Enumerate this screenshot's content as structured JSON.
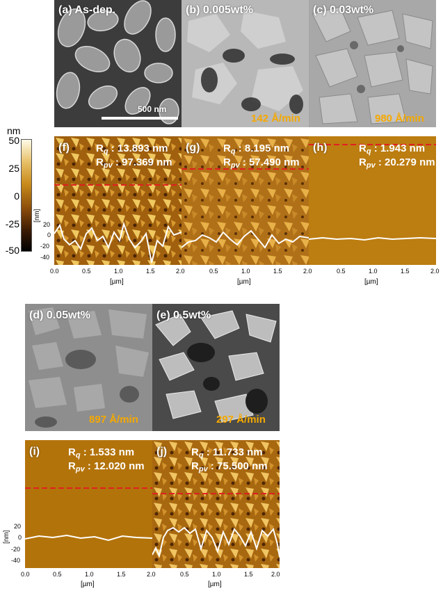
{
  "sem_panels": {
    "a": {
      "label": "(a) As-dep.",
      "scale_bar": "500 nm"
    },
    "b": {
      "label": "(b) 0.005wt%",
      "rate": "142 Å/min"
    },
    "c": {
      "label": "(c) 0.03wt%",
      "rate": "980 Å/min"
    },
    "d": {
      "label": "(d) 0.05wt%",
      "rate": "897 Å/min"
    },
    "e": {
      "label": "(e) 0.5wt%",
      "rate": "297 Å/min"
    }
  },
  "afm_panels": {
    "f": {
      "label": "(f)",
      "rq_label": "R",
      "rq_sub": "q",
      "rq_value": " : 13.893 nm",
      "rpv_label": "R",
      "rpv_sub": "pv",
      "rpv_value": " : 97.369 nm"
    },
    "g": {
      "label": "(g)",
      "rq_label": "R",
      "rq_sub": "q",
      "rq_value": " : 8.195 nm",
      "rpv_label": "R",
      "rpv_sub": "pv",
      "rpv_value": " : 57.490 nm"
    },
    "h": {
      "label": "(h)",
      "rq_label": "R",
      "rq_sub": "q",
      "rq_value": " : 1.943 nm",
      "rpv_label": "R",
      "rpv_sub": "pv",
      "rpv_value": " : 20.279 nm"
    },
    "i": {
      "label": "(i)",
      "rq_label": "R",
      "rq_sub": "q",
      "rq_value": " : 1.533 nm",
      "rpv_label": "R",
      "rpv_sub": "pv",
      "rpv_value": " : 12.020 nm"
    },
    "j": {
      "label": "(j)",
      "rq_label": "R",
      "rq_sub": "q",
      "rq_value": " : 11.733 nm",
      "rpv_label": "R",
      "rpv_sub": "pv",
      "rpv_value": " : 75.500 nm"
    }
  },
  "colorbar": {
    "unit": "nm",
    "ticks": [
      "50",
      "25",
      "0",
      "-25",
      "-50"
    ],
    "colors": [
      "#fffbe8",
      "#e8c068",
      "#c88a1a",
      "#8a4c0a",
      "#3a1a04",
      "#000000"
    ]
  },
  "profile_axes": {
    "y_unit": "[nm]",
    "x_unit": "[µm]",
    "y_ticks": [
      "20",
      "0",
      "-20",
      "-40"
    ],
    "x_ticks_row1": [
      "0.0",
      "0.5",
      "1.0",
      "1.5",
      "2.0",
      "0.5",
      "1.0",
      "1.5",
      "2.0",
      "0.5",
      "1.0",
      "1.5",
      "2.0"
    ],
    "x_ticks_row2": [
      "0.0",
      "0.5",
      "1.0",
      "1.5",
      "2.0",
      "0.5",
      "1.0",
      "1.5",
      "2.0"
    ]
  },
  "colors": {
    "rate_text": "#f5a800",
    "scan_line": "#e02020",
    "profile_line": "#ffffff"
  }
}
